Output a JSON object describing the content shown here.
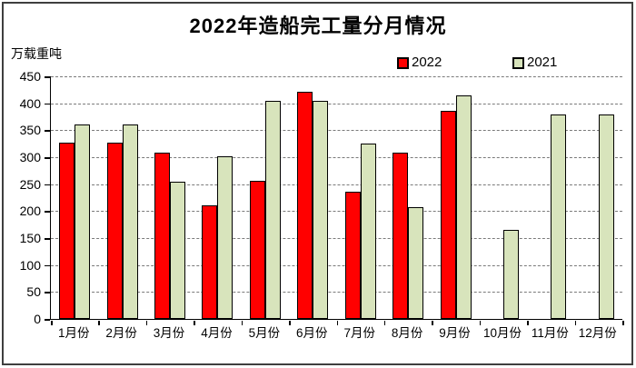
{
  "window": {
    "background": "#ffffff",
    "border_color": "#3f3f3f"
  },
  "chart_data": {
    "type": "bar",
    "title": "2022年造船完工量分月情况",
    "unit_label": "万载重吨",
    "xlabel": "",
    "ylabel": "万载重吨",
    "categories": [
      "1月份",
      "2月份",
      "3月份",
      "4月份",
      "5月份",
      "6月份",
      "7月份",
      "8月份",
      "9月份",
      "10月份",
      "11月份",
      "12月份"
    ],
    "series": [
      {
        "name": "2022",
        "color": "#ff0000",
        "values": [
          327,
          327,
          308,
          210,
          256,
          422,
          236,
          308,
          386,
          null,
          null,
          null
        ]
      },
      {
        "name": "2021",
        "color": "#d8e4bc",
        "values": [
          361,
          361,
          255,
          302,
          405,
          405,
          326,
          208,
          414,
          165,
          380,
          380
        ]
      }
    ],
    "ylim": [
      0,
      450
    ],
    "ytick_step": 50,
    "ytick_labels": [
      "450",
      "400",
      "350",
      "300",
      "250",
      "200",
      "150",
      "100",
      "50",
      "0"
    ],
    "grid": "horizontal-dashed",
    "gridline_color": "#7a7a7a",
    "legend_position": "top-right",
    "bar_border_color": "#000000"
  }
}
